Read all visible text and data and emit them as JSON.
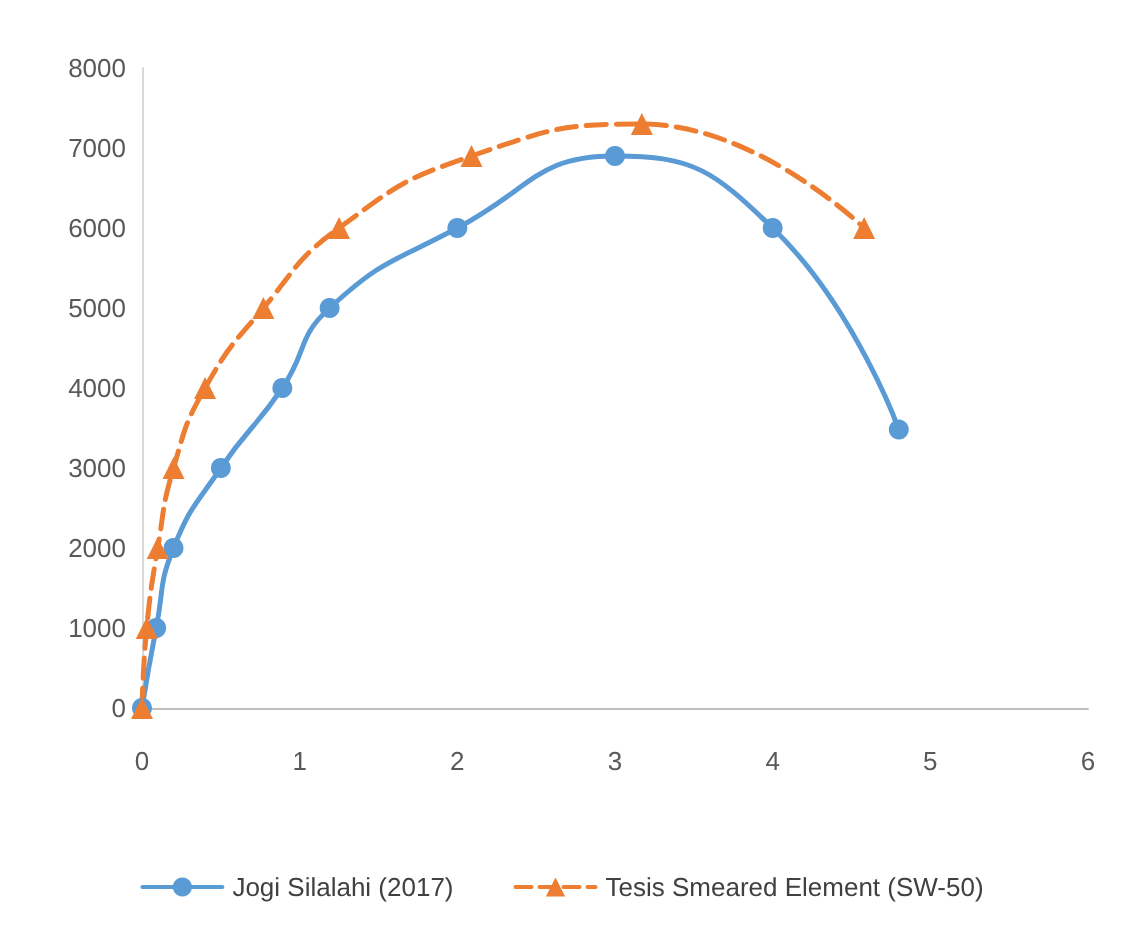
{
  "chart_data": {
    "type": "line",
    "xlim": [
      0,
      6
    ],
    "xticks": [
      0,
      1,
      2,
      3,
      4,
      5,
      6
    ],
    "ylim": [
      0,
      8000
    ],
    "yticks": [
      0,
      1000,
      2000,
      3000,
      4000,
      5000,
      6000,
      7000,
      8000
    ],
    "grid": false,
    "legend": "bottom",
    "series": [
      {
        "name": "Jogi Silalahi (2017)",
        "color": "#5b9bd5",
        "marker": "circle",
        "line_style": "solid",
        "x": [
          0,
          0.09,
          0.2,
          0.5,
          0.89,
          1.19,
          2.0,
          3.0,
          4.0,
          4.8
        ],
        "values": [
          0,
          1000,
          2000,
          3000,
          4000,
          5000,
          6000,
          6900,
          6000,
          3480
        ]
      },
      {
        "name": "Tesis Smeared Element (SW-50)",
        "color": "#ed7d31",
        "marker": "triangle",
        "line_style": "dashed",
        "x": [
          0,
          0.03,
          0.1,
          0.2,
          0.4,
          0.77,
          1.25,
          2.09,
          3.17,
          4.58
        ],
        "values": [
          0,
          1000,
          2000,
          3000,
          4000,
          5000,
          6000,
          6900,
          7300,
          6000
        ]
      }
    ]
  }
}
